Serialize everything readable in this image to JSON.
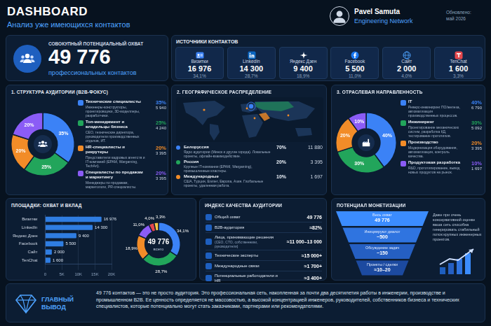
{
  "header": {
    "title": "DASHBOARD",
    "subtitle": "Анализ уже имеющихся контактов",
    "user": "Pavel Samuta",
    "network": "Engineering Network",
    "updated": "Обновлено:",
    "updated_date": "май 2026"
  },
  "reach": {
    "label": "СОВОКУПНЫЙ ПОТЕНЦИАЛЬНЫЙ ОХВАТ",
    "value": "49 776",
    "unit": "профессиональных контактов"
  },
  "sources": {
    "title": "ИСТОЧНИКИ КОНТАКТОВ",
    "items": [
      {
        "name": "Визитки",
        "value": "16 976",
        "share": "34,1%"
      },
      {
        "name": "LinkedIn",
        "value": "14 300",
        "share": "28,7%"
      },
      {
        "name": "Яндекс Дзен",
        "value": "9 400",
        "share": "18,9%"
      },
      {
        "name": "Facebook",
        "value": "5 500",
        "share": "11,0%"
      },
      {
        "name": "Сайт",
        "value": "2 000",
        "share": "4,0%"
      },
      {
        "name": "TenChat",
        "value": "1 600",
        "share": "3,3%"
      }
    ]
  },
  "geography": {
    "title": "2. ГЕОГРАФИЧЕСКОЕ РАСПРЕДЕЛЕНИЕ",
    "items": [
      {
        "name": "Белоруссия",
        "description": "Ядро аудитории (Минск и другие города). Локальные проекты, офлайн-взаимодействие.",
        "share": "70%",
        "count": "11 880"
      },
      {
        "name": "Россия",
        "description": "Крупные IT-компании (EPAM, Wargaming), промышленные кластеры.",
        "share": "20%",
        "count": "3 395"
      },
      {
        "name": "Международные",
        "description": "США, Турция, Египет, Европа, Азия. Глобальные проекты, удаленная работа.",
        "share": "10%",
        "count": "1 697"
      }
    ]
  },
  "quality": {
    "title": "ИНДЕКС КАЧЕСТВА АУДИТОРИИ",
    "items": [
      {
        "label": "Общий охват",
        "value": "49 776"
      },
      {
        "label": "B2B-аудитория",
        "value": "≈82%"
      },
      {
        "label": "Лица, принимающие решения",
        "note": "(CEO, CTO, собственники, руководители)",
        "value": "≈11 000–13 000"
      },
      {
        "label": "Технические эксперты",
        "value": "≈15 000+"
      },
      {
        "label": "Международные связи",
        "value": "≈1 700+"
      },
      {
        "label": "Потенциальные работодатели и HR",
        "value": "≈3 400+"
      }
    ]
  },
  "monetization": {
    "title": "ПОТЕНЦИАЛ МОНЕТИЗАЦИИ",
    "levels": [
      {
        "label": "Весь охват",
        "value": "49 776"
      },
      {
        "label": "Инициируют диалог",
        "value": "~500"
      },
      {
        "label": "Обсуждение задач",
        "value": "~150"
      },
      {
        "label": "Проекты / сделки",
        "value": "≈10–20"
      }
    ],
    "text": "Даже при очень консервативной оценке ваша сеть способна генерировать стабильный поток крупных инженерных проектов."
  },
  "conclusion": {
    "title": "ГЛАВНЫЙ ВЫВОД",
    "text": "49 776 контактов — это не просто аудитория. Это профессиональная сеть, накопленная за почти два десятилетия работы в инженерии, производстве и промышленном B2B. Ее ценность определяется не массовостью, а высокой концентрацией инженеров, руководителей, собственников бизнеса и технических специалистов, которые потенциально могут стать заказчиками, партнерами или рекомендателями."
  },
  "chart_data": [
    {
      "type": "doughnut",
      "title": "1. СТРУКТУРА АУДИТОРИИ (B2B-ФОКУС)",
      "categories": [
        "Технические специалисты",
        "Топ-менеджмент и владельцы бизнеса",
        "HR-специалисты и рекрутеры",
        "Специалисты по продажам и маркетингу"
      ],
      "descriptions": [
        "Инженеры-конструкторы, проектировщики, 3D-моделлеры, разработчики.",
        "CEO, технические директора, руководители производственных отделов, ИТ.",
        "Представители кадровых агентств и IT-компаний (EPAM, Wargaming, TechArt).",
        "Менеджеры по продажам, маркетологи, PR-специалисты."
      ],
      "values": [
        35,
        25,
        20,
        20
      ],
      "value_labels": [
        "35%",
        "25%",
        "20%",
        "20%"
      ],
      "counts": [
        "5 940",
        "4 240",
        "3 395",
        "3 395"
      ],
      "colors": [
        "#3b82f6",
        "#22a55b",
        "#f28c28",
        "#8b5cf6"
      ],
      "data_labels": true
    },
    {
      "type": "doughnut",
      "title": "3. ОТРАСЛЕВАЯ НАПРАВЛЕННОСТЬ",
      "categories": [
        "IT",
        "Инжиниринг",
        "Производство",
        "Продуктовая разработка"
      ],
      "descriptions": [
        "Реверс-инжиниринг ПО/железа, автоматизация производственных процессов.",
        "Проектирование механических систем, разработка КД, тестирование прототипов.",
        "Модернизация оборудования, автоматизация, контроль качества.",
        "R&D, прототипирование, вывод новых продуктов на рынок."
      ],
      "values": [
        40,
        30,
        20,
        10
      ],
      "value_labels": [
        "40%",
        "30%",
        "20%",
        "10%"
      ],
      "counts": [
        "6 790",
        "5 092",
        "3 395",
        "1 697"
      ],
      "colors": [
        "#3b82f6",
        "#22a55b",
        "#f28c28",
        "#8b5cf6"
      ],
      "data_labels": true
    },
    {
      "type": "bar",
      "title": "ПЛОЩАДКИ: ОХВАТ И ВКЛАД",
      "orientation": "horizontal",
      "categories": [
        "Визитки",
        "LinkedIn",
        "Яндекс Дзен",
        "Facebook",
        "Сайт",
        "TenChat"
      ],
      "values": [
        16976,
        14300,
        9400,
        5500,
        2000,
        1600
      ],
      "value_labels": [
        "16 976",
        "14 300",
        "9 400",
        "5 500",
        "2 000",
        "1 600"
      ],
      "color": "#2f7de1",
      "xlim": [
        0,
        20000
      ],
      "xticks": [
        0,
        {
          "value": 5000,
          "label": "5K"
        },
        {
          "value": 10000,
          "label": "10K"
        },
        {
          "value": 15000,
          "label": "15K"
        },
        {
          "value": 20000,
          "label": "20K"
        }
      ],
      "grid": true,
      "data_labels": true
    },
    {
      "type": "doughnut",
      "values": [
        34.1,
        28.7,
        18.9,
        11.0,
        4.0,
        3.3
      ],
      "value_labels": [
        "34,1%",
        "28,7%",
        "18,9%",
        "11,0%",
        "4,0%",
        "3,3%"
      ],
      "colors": [
        "#3b82f6",
        "#22a55b",
        "#f28c28",
        "#8b5cf6",
        "#e5484d",
        "#f5c542"
      ],
      "center_value": "49 776",
      "center_label": "всего",
      "data_labels": true
    }
  ]
}
